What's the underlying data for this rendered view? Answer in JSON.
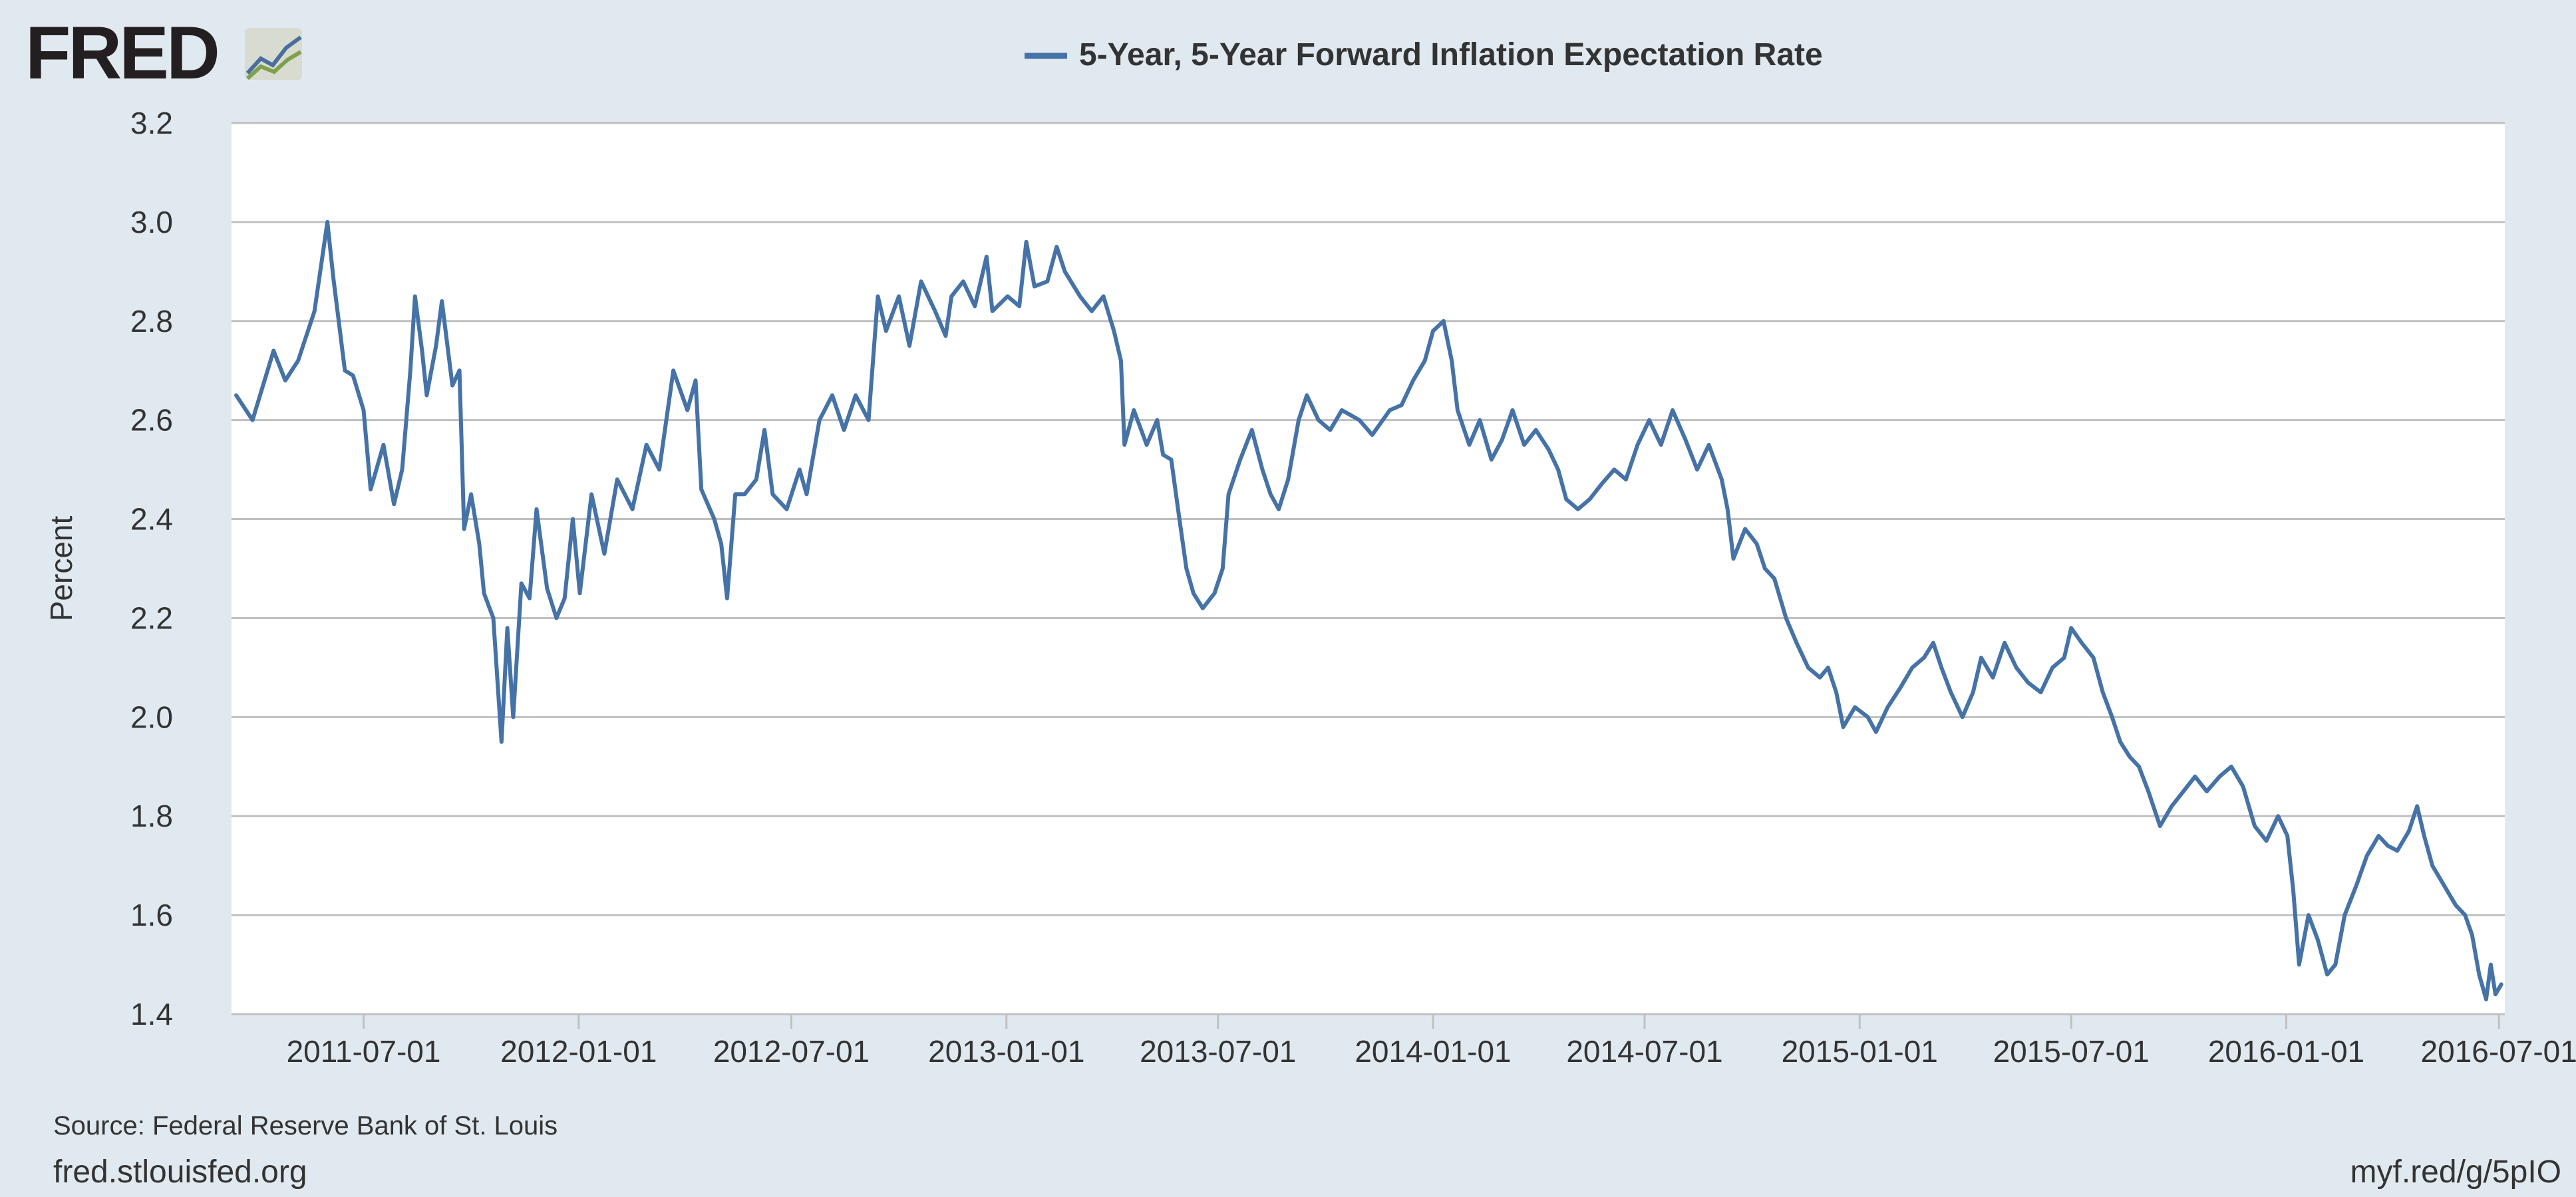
{
  "brand": {
    "name": "FRED"
  },
  "footer": {
    "source": "Source: Federal Reserve Bank of St. Louis",
    "site": "fred.stlouisfed.org",
    "short_link": "myf.red/g/5pIO"
  },
  "colors": {
    "background": "#e1e9f0",
    "plot_background": "#ffffff",
    "series": "#4572a7",
    "gridline": "#c0c0c0",
    "text": "#333333"
  },
  "chart_data": {
    "type": "line",
    "title": "",
    "xlabel": "",
    "ylabel": "Percent",
    "ylim": [
      1.4,
      3.2
    ],
    "yticks": [
      "1.4",
      "1.6",
      "1.8",
      "2.0",
      "2.2",
      "2.4",
      "2.6",
      "2.8",
      "3.0",
      "3.2"
    ],
    "xlim": [
      "2011-03-10",
      "2016-07-06"
    ],
    "xticks": [
      "2011-07-01",
      "2012-01-01",
      "2012-07-01",
      "2013-01-01",
      "2013-07-01",
      "2014-01-01",
      "2014-07-01",
      "2015-01-01",
      "2015-07-01",
      "2016-01-01",
      "2016-07-01"
    ],
    "grid": true,
    "legend_position": "top-center",
    "series": [
      {
        "name": "5-Year, 5-Year Forward Inflation Expectation Rate",
        "points": [
          [
            "2011-03-14",
            2.65
          ],
          [
            "2011-03-28",
            2.6
          ],
          [
            "2011-04-15",
            2.74
          ],
          [
            "2011-04-25",
            2.68
          ],
          [
            "2011-05-06",
            2.72
          ],
          [
            "2011-05-20",
            2.82
          ],
          [
            "2011-05-31",
            3.0
          ],
          [
            "2011-06-05",
            2.89
          ],
          [
            "2011-06-15",
            2.7
          ],
          [
            "2011-06-22",
            2.69
          ],
          [
            "2011-07-01",
            2.62
          ],
          [
            "2011-07-07",
            2.46
          ],
          [
            "2011-07-18",
            2.55
          ],
          [
            "2011-07-27",
            2.43
          ],
          [
            "2011-08-03",
            2.5
          ],
          [
            "2011-08-10",
            2.7
          ],
          [
            "2011-08-14",
            2.85
          ],
          [
            "2011-08-20",
            2.74
          ],
          [
            "2011-08-24",
            2.65
          ],
          [
            "2011-09-01",
            2.75
          ],
          [
            "2011-09-06",
            2.84
          ],
          [
            "2011-09-15",
            2.67
          ],
          [
            "2011-09-21",
            2.7
          ],
          [
            "2011-09-25",
            2.38
          ],
          [
            "2011-10-01",
            2.45
          ],
          [
            "2011-10-08",
            2.35
          ],
          [
            "2011-10-12",
            2.25
          ],
          [
            "2011-10-20",
            2.2
          ],
          [
            "2011-10-27",
            1.95
          ],
          [
            "2011-11-01",
            2.18
          ],
          [
            "2011-11-06",
            2.0
          ],
          [
            "2011-11-13",
            2.27
          ],
          [
            "2011-11-20",
            2.24
          ],
          [
            "2011-11-26",
            2.42
          ],
          [
            "2011-12-05",
            2.26
          ],
          [
            "2011-12-13",
            2.2
          ],
          [
            "2011-12-20",
            2.24
          ],
          [
            "2011-12-27",
            2.4
          ],
          [
            "2012-01-02",
            2.25
          ],
          [
            "2012-01-12",
            2.45
          ],
          [
            "2012-01-23",
            2.33
          ],
          [
            "2012-02-03",
            2.48
          ],
          [
            "2012-02-16",
            2.42
          ],
          [
            "2012-02-28",
            2.55
          ],
          [
            "2012-03-10",
            2.5
          ],
          [
            "2012-03-22",
            2.7
          ],
          [
            "2012-04-03",
            2.62
          ],
          [
            "2012-04-10",
            2.68
          ],
          [
            "2012-04-15",
            2.46
          ],
          [
            "2012-04-26",
            2.4
          ],
          [
            "2012-05-02",
            2.35
          ],
          [
            "2012-05-07",
            2.24
          ],
          [
            "2012-05-14",
            2.45
          ],
          [
            "2012-05-22",
            2.45
          ],
          [
            "2012-06-01",
            2.48
          ],
          [
            "2012-06-08",
            2.58
          ],
          [
            "2012-06-15",
            2.45
          ],
          [
            "2012-06-27",
            2.42
          ],
          [
            "2012-07-08",
            2.5
          ],
          [
            "2012-07-14",
            2.45
          ],
          [
            "2012-07-25",
            2.6
          ],
          [
            "2012-08-05",
            2.65
          ],
          [
            "2012-08-15",
            2.58
          ],
          [
            "2012-08-25",
            2.65
          ],
          [
            "2012-09-05",
            2.6
          ],
          [
            "2012-09-13",
            2.85
          ],
          [
            "2012-09-20",
            2.78
          ],
          [
            "2012-10-01",
            2.85
          ],
          [
            "2012-10-10",
            2.75
          ],
          [
            "2012-10-20",
            2.88
          ],
          [
            "2012-11-01",
            2.82
          ],
          [
            "2012-11-10",
            2.77
          ],
          [
            "2012-11-15",
            2.85
          ],
          [
            "2012-11-25",
            2.88
          ],
          [
            "2012-12-05",
            2.83
          ],
          [
            "2012-12-15",
            2.93
          ],
          [
            "2012-12-20",
            2.82
          ],
          [
            "2013-01-02",
            2.85
          ],
          [
            "2013-01-12",
            2.83
          ],
          [
            "2013-01-18",
            2.96
          ],
          [
            "2013-01-25",
            2.87
          ],
          [
            "2013-02-05",
            2.88
          ],
          [
            "2013-02-13",
            2.95
          ],
          [
            "2013-02-20",
            2.9
          ],
          [
            "2013-03-05",
            2.85
          ],
          [
            "2013-03-15",
            2.82
          ],
          [
            "2013-03-25",
            2.85
          ],
          [
            "2013-04-03",
            2.78
          ],
          [
            "2013-04-09",
            2.72
          ],
          [
            "2013-04-12",
            2.55
          ],
          [
            "2013-04-20",
            2.62
          ],
          [
            "2013-05-01",
            2.55
          ],
          [
            "2013-05-10",
            2.6
          ],
          [
            "2013-05-15",
            2.53
          ],
          [
            "2013-05-22",
            2.52
          ],
          [
            "2013-05-29",
            2.4
          ],
          [
            "2013-06-04",
            2.3
          ],
          [
            "2013-06-10",
            2.25
          ],
          [
            "2013-06-18",
            2.22
          ],
          [
            "2013-06-28",
            2.25
          ],
          [
            "2013-07-05",
            2.3
          ],
          [
            "2013-07-10",
            2.45
          ],
          [
            "2013-07-20",
            2.52
          ],
          [
            "2013-07-30",
            2.58
          ],
          [
            "2013-08-08",
            2.5
          ],
          [
            "2013-08-15",
            2.45
          ],
          [
            "2013-08-22",
            2.42
          ],
          [
            "2013-08-30",
            2.48
          ],
          [
            "2013-09-08",
            2.6
          ],
          [
            "2013-09-15",
            2.65
          ],
          [
            "2013-09-25",
            2.6
          ],
          [
            "2013-10-05",
            2.58
          ],
          [
            "2013-10-15",
            2.62
          ],
          [
            "2013-10-30",
            2.6
          ],
          [
            "2013-11-10",
            2.57
          ],
          [
            "2013-11-25",
            2.62
          ],
          [
            "2013-12-05",
            2.63
          ],
          [
            "2013-12-15",
            2.68
          ],
          [
            "2013-12-25",
            2.72
          ],
          [
            "2014-01-01",
            2.78
          ],
          [
            "2014-01-10",
            2.8
          ],
          [
            "2014-01-17",
            2.72
          ],
          [
            "2014-01-22",
            2.62
          ],
          [
            "2014-02-01",
            2.55
          ],
          [
            "2014-02-10",
            2.6
          ],
          [
            "2014-02-20",
            2.52
          ],
          [
            "2014-03-01",
            2.56
          ],
          [
            "2014-03-10",
            2.62
          ],
          [
            "2014-03-20",
            2.55
          ],
          [
            "2014-03-30",
            2.58
          ],
          [
            "2014-04-10",
            2.54
          ],
          [
            "2014-04-18",
            2.5
          ],
          [
            "2014-04-25",
            2.44
          ],
          [
            "2014-05-05",
            2.42
          ],
          [
            "2014-05-15",
            2.44
          ],
          [
            "2014-05-25",
            2.47
          ],
          [
            "2014-06-05",
            2.5
          ],
          [
            "2014-06-15",
            2.48
          ],
          [
            "2014-06-25",
            2.55
          ],
          [
            "2014-07-05",
            2.6
          ],
          [
            "2014-07-15",
            2.55
          ],
          [
            "2014-07-25",
            2.62
          ],
          [
            "2014-08-05",
            2.56
          ],
          [
            "2014-08-15",
            2.5
          ],
          [
            "2014-08-25",
            2.55
          ],
          [
            "2014-09-05",
            2.48
          ],
          [
            "2014-09-10",
            2.42
          ],
          [
            "2014-09-15",
            2.32
          ],
          [
            "2014-09-25",
            2.38
          ],
          [
            "2014-10-05",
            2.35
          ],
          [
            "2014-10-12",
            2.3
          ],
          [
            "2014-10-20",
            2.28
          ],
          [
            "2014-10-30",
            2.2
          ],
          [
            "2014-11-08",
            2.15
          ],
          [
            "2014-11-18",
            2.1
          ],
          [
            "2014-11-28",
            2.08
          ],
          [
            "2014-12-05",
            2.1
          ],
          [
            "2014-12-12",
            2.05
          ],
          [
            "2014-12-18",
            1.98
          ],
          [
            "2014-12-28",
            2.02
          ],
          [
            "2015-01-08",
            2.0
          ],
          [
            "2015-01-15",
            1.97
          ],
          [
            "2015-01-25",
            2.02
          ],
          [
            "2015-02-05",
            2.06
          ],
          [
            "2015-02-15",
            2.1
          ],
          [
            "2015-02-25",
            2.12
          ],
          [
            "2015-03-05",
            2.15
          ],
          [
            "2015-03-12",
            2.1
          ],
          [
            "2015-03-20",
            2.05
          ],
          [
            "2015-03-30",
            2.0
          ],
          [
            "2015-04-08",
            2.05
          ],
          [
            "2015-04-15",
            2.12
          ],
          [
            "2015-04-25",
            2.08
          ],
          [
            "2015-05-05",
            2.15
          ],
          [
            "2015-05-15",
            2.1
          ],
          [
            "2015-05-25",
            2.07
          ],
          [
            "2015-06-05",
            2.05
          ],
          [
            "2015-06-15",
            2.1
          ],
          [
            "2015-06-25",
            2.12
          ],
          [
            "2015-07-01",
            2.18
          ],
          [
            "2015-07-10",
            2.15
          ],
          [
            "2015-07-20",
            2.12
          ],
          [
            "2015-07-28",
            2.05
          ],
          [
            "2015-08-05",
            2.0
          ],
          [
            "2015-08-12",
            1.95
          ],
          [
            "2015-08-20",
            1.92
          ],
          [
            "2015-08-28",
            1.9
          ],
          [
            "2015-09-05",
            1.85
          ],
          [
            "2015-09-15",
            1.78
          ],
          [
            "2015-09-25",
            1.82
          ],
          [
            "2015-10-05",
            1.85
          ],
          [
            "2015-10-15",
            1.88
          ],
          [
            "2015-10-25",
            1.85
          ],
          [
            "2015-11-05",
            1.88
          ],
          [
            "2015-11-15",
            1.9
          ],
          [
            "2015-11-25",
            1.86
          ],
          [
            "2015-12-05",
            1.78
          ],
          [
            "2015-12-15",
            1.75
          ],
          [
            "2015-12-25",
            1.8
          ],
          [
            "2016-01-02",
            1.76
          ],
          [
            "2016-01-07",
            1.65
          ],
          [
            "2016-01-12",
            1.5
          ],
          [
            "2016-01-20",
            1.6
          ],
          [
            "2016-01-28",
            1.55
          ],
          [
            "2016-02-05",
            1.48
          ],
          [
            "2016-02-12",
            1.5
          ],
          [
            "2016-02-20",
            1.6
          ],
          [
            "2016-03-01",
            1.66
          ],
          [
            "2016-03-10",
            1.72
          ],
          [
            "2016-03-20",
            1.76
          ],
          [
            "2016-03-28",
            1.74
          ],
          [
            "2016-04-05",
            1.73
          ],
          [
            "2016-04-15",
            1.77
          ],
          [
            "2016-04-22",
            1.82
          ],
          [
            "2016-04-28",
            1.76
          ],
          [
            "2016-05-05",
            1.7
          ],
          [
            "2016-05-15",
            1.66
          ],
          [
            "2016-05-25",
            1.62
          ],
          [
            "2016-06-02",
            1.6
          ],
          [
            "2016-06-08",
            1.56
          ],
          [
            "2016-06-14",
            1.48
          ],
          [
            "2016-06-20",
            1.43
          ],
          [
            "2016-06-24",
            1.5
          ],
          [
            "2016-06-28",
            1.44
          ],
          [
            "2016-07-03",
            1.46
          ]
        ]
      }
    ]
  }
}
